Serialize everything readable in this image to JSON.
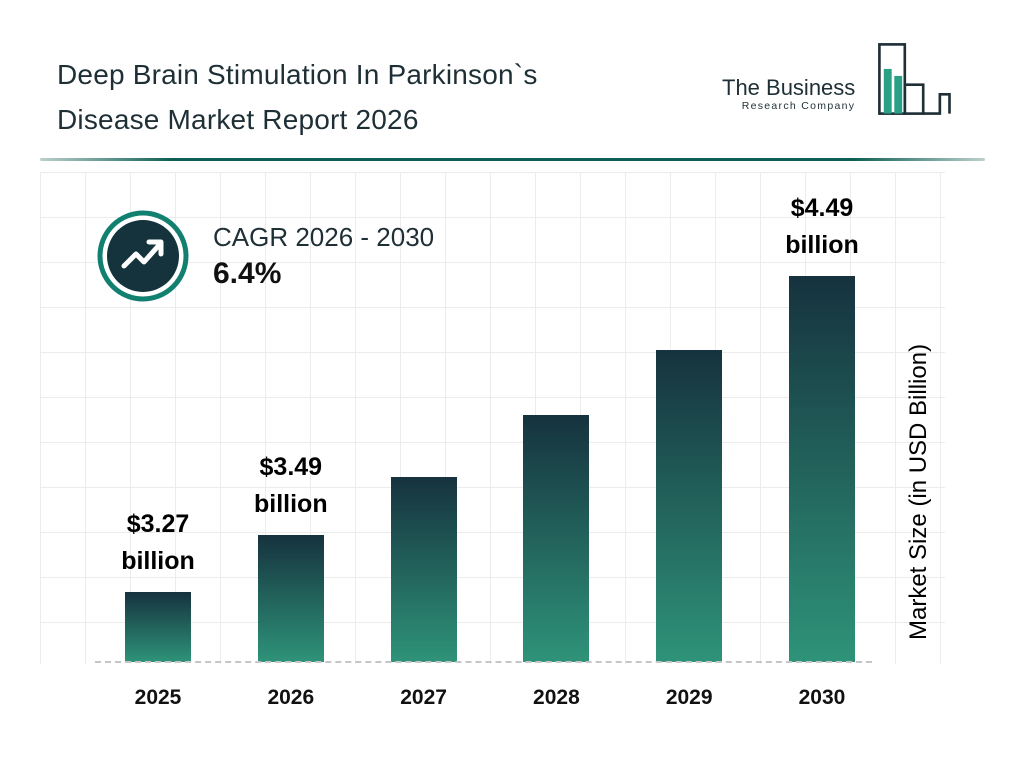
{
  "header": {
    "title_line1": "Deep Brain Stimulation In Parkinson`s",
    "title_line2": "Disease Market Report 2026",
    "logo": {
      "name_line1": "The Business",
      "name_line2": "Research Company"
    }
  },
  "cagr": {
    "label": "CAGR 2026 - 2030",
    "value": "6.4%"
  },
  "chart_data": {
    "type": "bar",
    "title": "Deep Brain Stimulation In Parkinson`s Disease Market Report 2026",
    "categories": [
      "2025",
      "2026",
      "2027",
      "2028",
      "2029",
      "2030"
    ],
    "values": [
      3.27,
      3.49,
      3.71,
      3.95,
      4.2,
      4.49
    ],
    "value_labels": [
      {
        "amount": "$3.27",
        "unit": "billion"
      },
      {
        "amount": "$3.49",
        "unit": "billion"
      },
      null,
      null,
      null,
      {
        "amount": "$4.49",
        "unit": "billion"
      }
    ],
    "xlabel": "",
    "ylabel": "Market Size (in USD Billion)",
    "ylim": [
      3.0,
      4.5
    ],
    "grid": true,
    "legend": "none",
    "bar_gradient_top": "#16323e",
    "bar_gradient_bottom": "#2e9379"
  },
  "colors": {
    "title_text": "#1e2f36",
    "accent_teal": "#128070",
    "divider_teal": "#0d5f55",
    "logo_teal": "#2aa187",
    "logo_navy": "#1e2f36"
  }
}
